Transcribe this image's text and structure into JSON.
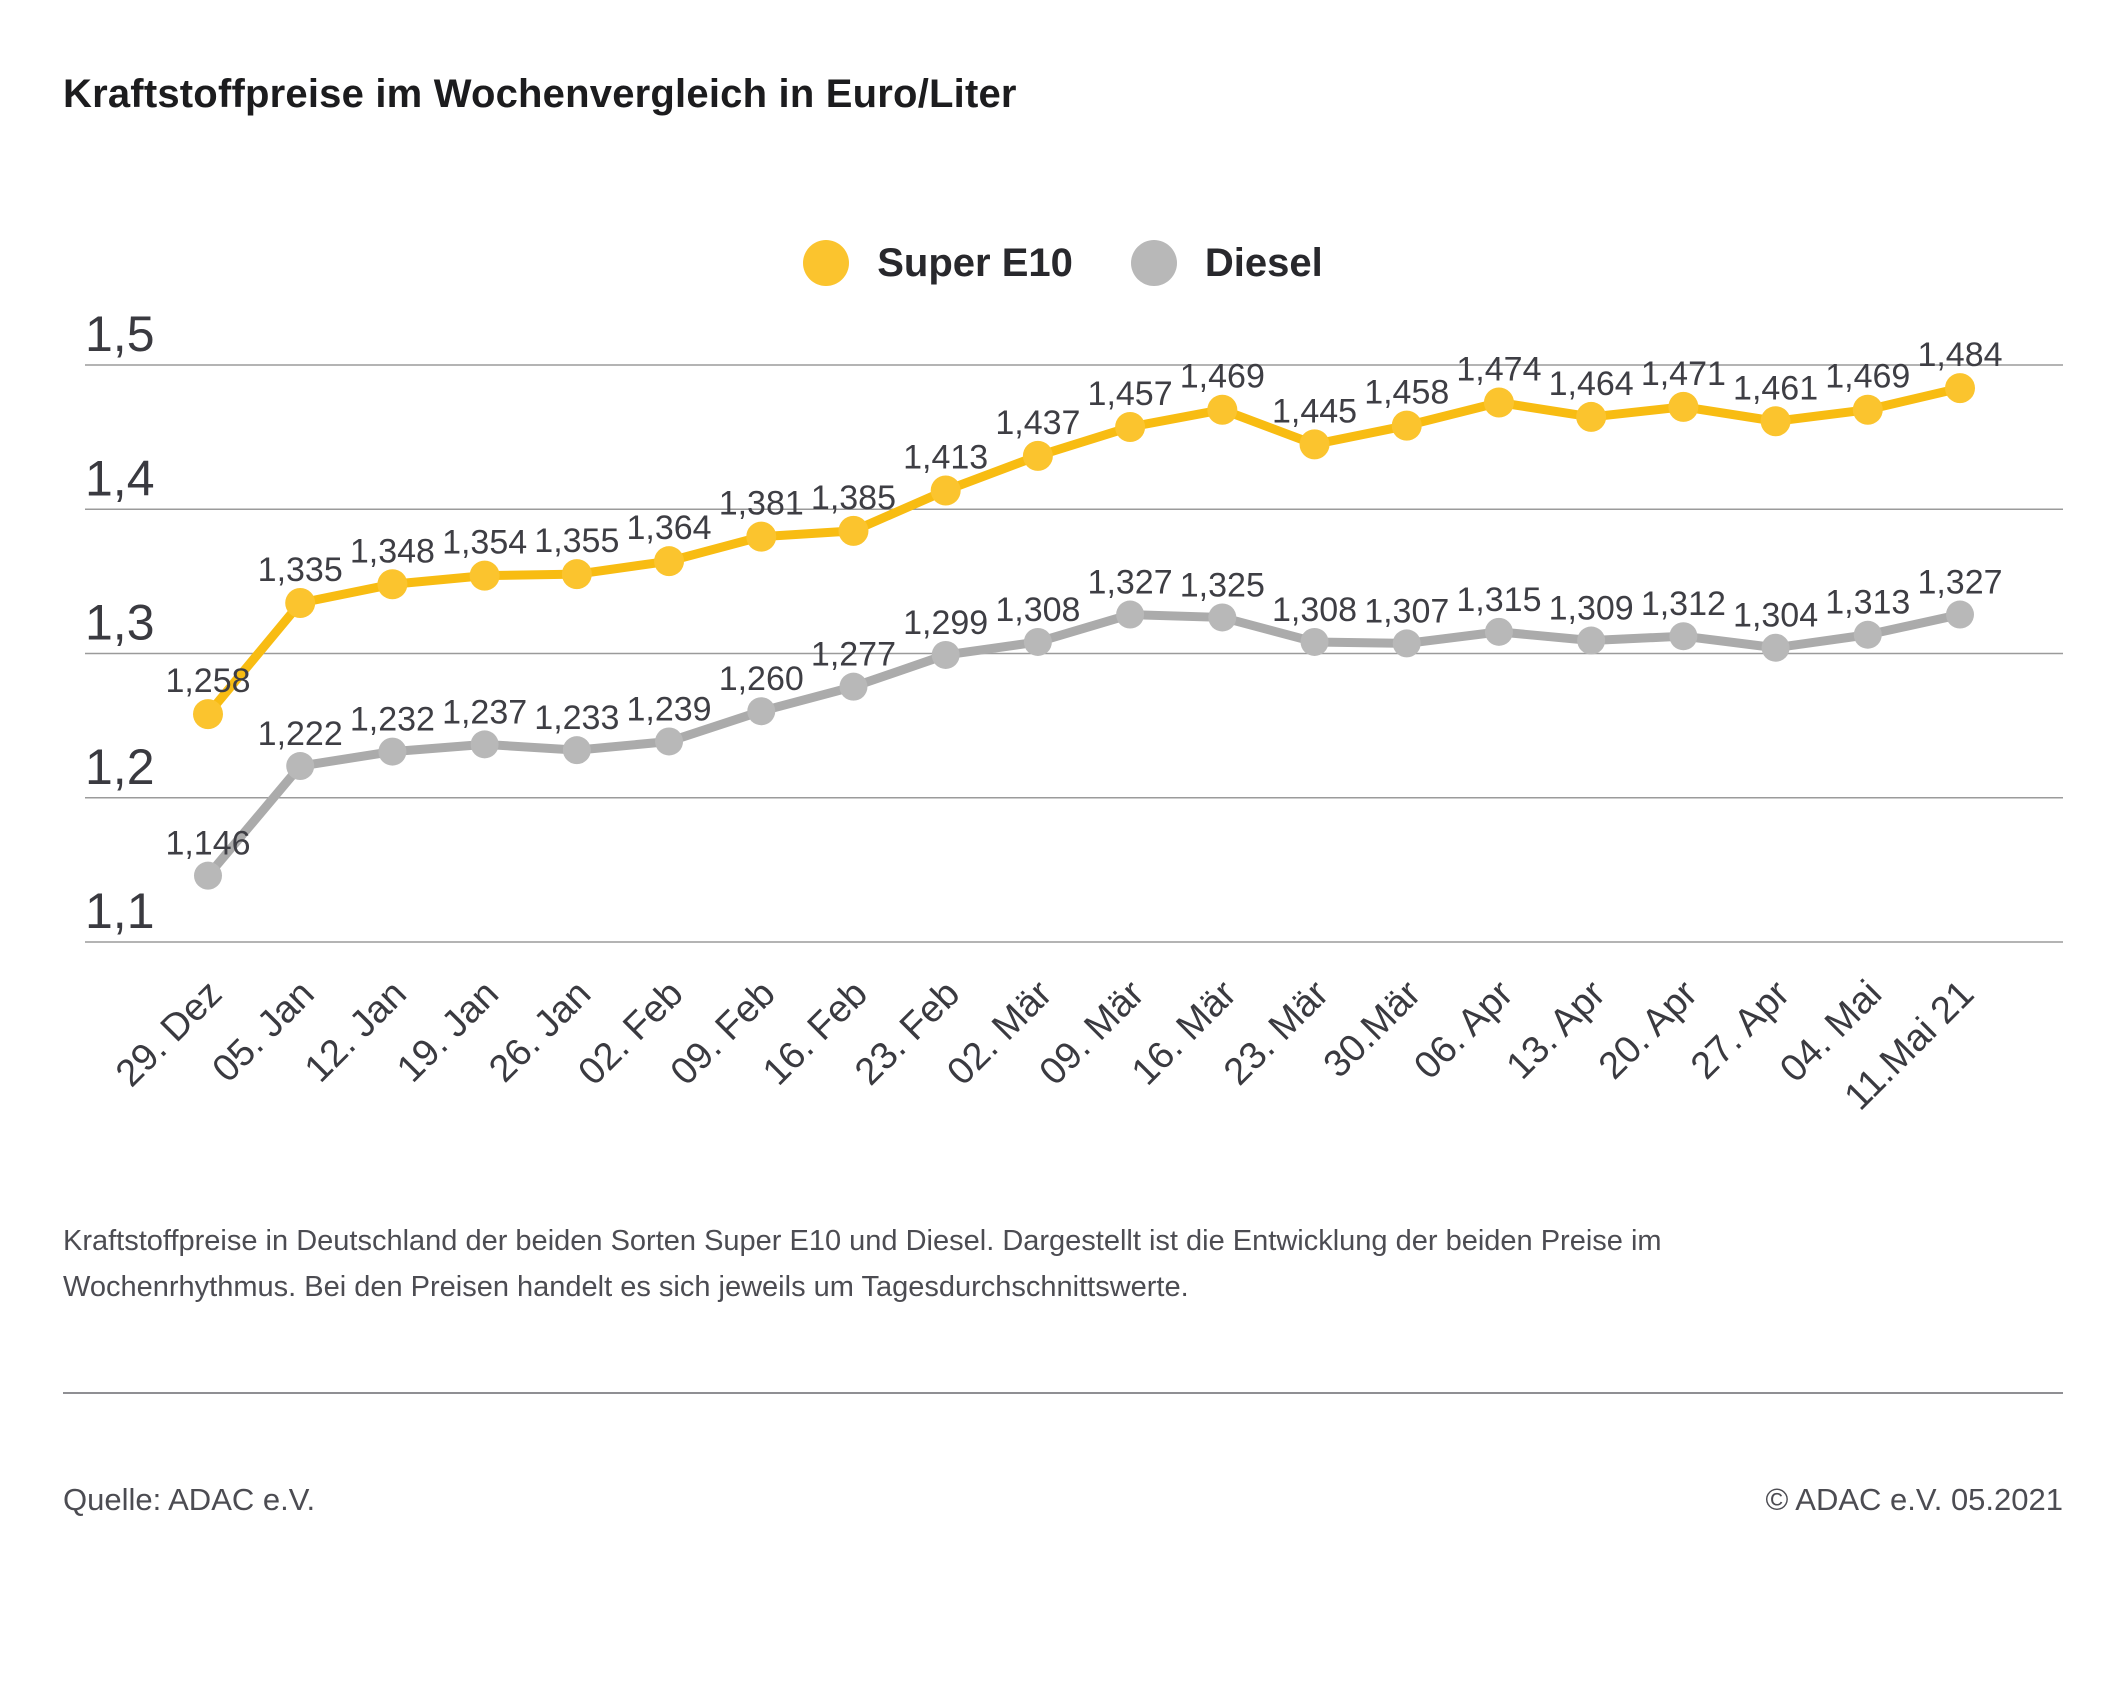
{
  "page": {
    "title": "Kraftstoffpreise im Wochenvergleich in Euro/Liter"
  },
  "legend": {
    "items": [
      {
        "label": "Super E10",
        "color": "#F8BC12"
      },
      {
        "label": "Diesel",
        "color": "#B3B3B3"
      }
    ]
  },
  "chart_data": {
    "type": "line",
    "title": "Kraftstoffpreise im Wochenvergleich in Euro/Liter",
    "unit": "Euro/Liter",
    "grid": true,
    "legend_position": "top-center",
    "ylim": [
      1.1,
      1.5
    ],
    "yticks": [
      {
        "value": 1.5,
        "label": "1,5"
      },
      {
        "value": 1.4,
        "label": "1,4"
      },
      {
        "value": 1.3,
        "label": "1,3"
      },
      {
        "value": 1.2,
        "label": "1,2"
      },
      {
        "value": 1.1,
        "label": "1,1"
      }
    ],
    "categories": [
      "29. Dez",
      "05. Jan",
      "12. Jan",
      "19. Jan",
      "26. Jan",
      "02. Feb",
      "09. Feb",
      "16. Feb",
      "23. Feb",
      "02. Mär",
      "09. Mär",
      "16. Mär",
      "23. Mär",
      "30.Mär",
      "06. Apr",
      "13. Apr",
      "20. Apr",
      "27. Apr",
      "04. Mai",
      "11.Mai 21"
    ],
    "series": [
      {
        "name": "Super E10",
        "color": "#F8BC12",
        "marker_color": "#FBC42E",
        "values": [
          1.258,
          1.335,
          1.348,
          1.354,
          1.355,
          1.364,
          1.381,
          1.385,
          1.413,
          1.437,
          1.457,
          1.469,
          1.445,
          1.458,
          1.474,
          1.464,
          1.471,
          1.461,
          1.469,
          1.484
        ]
      },
      {
        "name": "Diesel",
        "color": "#ABABAB",
        "marker_color": "#B8B8B8",
        "values": [
          1.146,
          1.222,
          1.232,
          1.237,
          1.233,
          1.239,
          1.26,
          1.277,
          1.299,
          1.308,
          1.327,
          1.325,
          1.308,
          1.307,
          1.315,
          1.309,
          1.312,
          1.304,
          1.313,
          1.327
        ]
      }
    ],
    "label_decimal_separator": ","
  },
  "description": "Kraftstoffpreise in Deutschland der beiden Sorten Super E10 und Diesel. Dargestellt ist die Entwicklung der beiden Preise im Wochenrhythmus. Bei den Preisen handelt es sich jeweils um Tagesdurchschnittswerte.",
  "source": {
    "left": "Quelle: ADAC e.V.",
    "right": "© ADAC e.V. 05.2021"
  },
  "colors": {
    "grid": "#9b9b9b",
    "axis_text": "#3a3a40",
    "data_label_text": "#3e3e44"
  }
}
